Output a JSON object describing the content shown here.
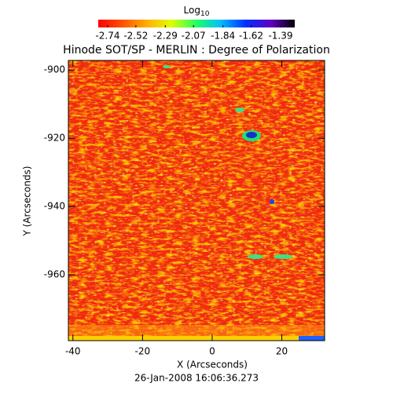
{
  "chart_data": {
    "type": "heatmap",
    "title": "Hinode SOT/SP - MERLIN : Degree of Polarization",
    "x_label": "X (Arcseconds)",
    "y_label": "Y (Arcseconds)",
    "footer": "26-Jan-2008 16:06:36.273",
    "colorbar_label": "Log",
    "colorbar_label_sub": "10",
    "clim": [
      -2.74,
      -1.39
    ],
    "cticks": [
      -2.74,
      -2.52,
      -2.29,
      -2.07,
      -1.84,
      -1.62,
      -1.39
    ],
    "xlim": [
      -41.3,
      32.3
    ],
    "xticks": [
      -40,
      -20,
      0,
      20
    ],
    "ylim": [
      -979.3,
      -897.2
    ],
    "yticks": [
      -960,
      -940,
      -920,
      -900
    ]
  }
}
